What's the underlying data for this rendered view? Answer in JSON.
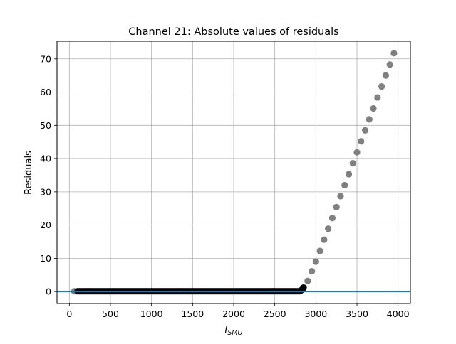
{
  "chart_data": {
    "type": "scatter",
    "title": "Channel 21: Absolute values of residuals",
    "xlabel": "I",
    "xlabel_subscript": "SMU",
    "ylabel": "Residuals",
    "xlim": [
      -150,
      4150
    ],
    "ylim": [
      -3.6,
      75.3
    ],
    "xticks": [
      0,
      500,
      1000,
      1500,
      2000,
      2500,
      3000,
      3500,
      4000
    ],
    "yticks": [
      0,
      10,
      20,
      30,
      40,
      50,
      60,
      70
    ],
    "grid": true,
    "hline": {
      "y": 0,
      "color": "#1f77b4"
    },
    "colors": {
      "in_range": "#000000",
      "out_of_range": "#808080",
      "first_point": "#808080"
    },
    "series": [
      {
        "key": "first_point",
        "x": [
          60
        ],
        "y": [
          0.1
        ]
      },
      {
        "key": "in_range",
        "x_start": 100,
        "x_end": 2800,
        "x_step": 20,
        "y_level": 0.1,
        "tail_x": [
          2810,
          2820,
          2830,
          2840,
          2850
        ],
        "tail_y": [
          0.2,
          0.35,
          0.55,
          0.8,
          1.2
        ]
      },
      {
        "key": "out_of_range",
        "x": [
          2900,
          2950,
          3000,
          3050,
          3100,
          3150,
          3200,
          3250,
          3300,
          3350,
          3400,
          3450,
          3500,
          3550,
          3600,
          3650,
          3700,
          3750,
          3800,
          3850,
          3900,
          3950
        ],
        "y": [
          3.2,
          6.1,
          9.0,
          12.2,
          15.6,
          18.9,
          22.1,
          25.4,
          28.7,
          32.0,
          35.3,
          38.6,
          41.9,
          45.2,
          48.5,
          51.8,
          55.1,
          58.4,
          61.7,
          65.0,
          68.3,
          71.7
        ]
      }
    ]
  }
}
